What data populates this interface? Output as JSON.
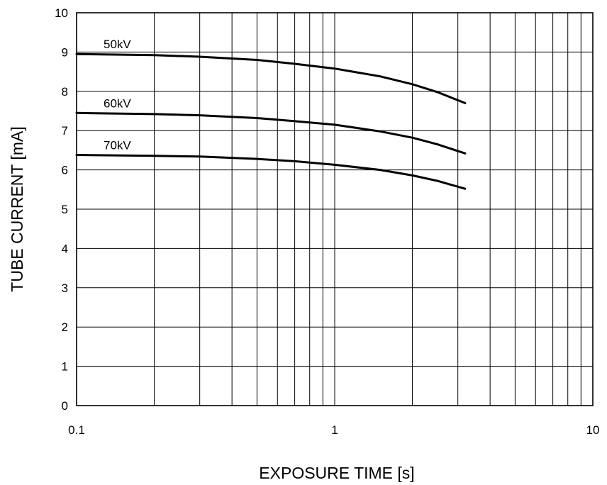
{
  "chart_data": {
    "type": "line",
    "xlabel": "EXPOSURE TIME [s]",
    "ylabel": "TUBE CURRENT [mA]",
    "xscale": "log",
    "xlim": [
      0.1,
      10
    ],
    "ylim": [
      0,
      10
    ],
    "grid": true,
    "x_tick_labels": [
      "0.1",
      "1",
      "10"
    ],
    "y_tick_labels": [
      "0",
      "1",
      "2",
      "3",
      "4",
      "5",
      "6",
      "7",
      "8",
      "9",
      "10"
    ],
    "series": [
      {
        "name": "50kV",
        "x": [
          0.1,
          0.2,
          0.3,
          0.5,
          0.7,
          1.0,
          1.5,
          2.0,
          2.5,
          3.2
        ],
        "y": [
          8.95,
          8.92,
          8.88,
          8.8,
          8.7,
          8.58,
          8.38,
          8.18,
          7.98,
          7.7
        ]
      },
      {
        "name": "60kV",
        "x": [
          0.1,
          0.2,
          0.3,
          0.5,
          0.7,
          1.0,
          1.5,
          2.0,
          2.5,
          3.2
        ],
        "y": [
          7.45,
          7.42,
          7.39,
          7.32,
          7.24,
          7.15,
          6.98,
          6.82,
          6.65,
          6.42
        ]
      },
      {
        "name": "70kV",
        "x": [
          0.1,
          0.2,
          0.3,
          0.5,
          0.7,
          1.0,
          1.5,
          2.0,
          2.5,
          3.2
        ],
        "y": [
          6.38,
          6.36,
          6.34,
          6.28,
          6.22,
          6.13,
          6.0,
          5.86,
          5.72,
          5.52
        ]
      }
    ]
  }
}
